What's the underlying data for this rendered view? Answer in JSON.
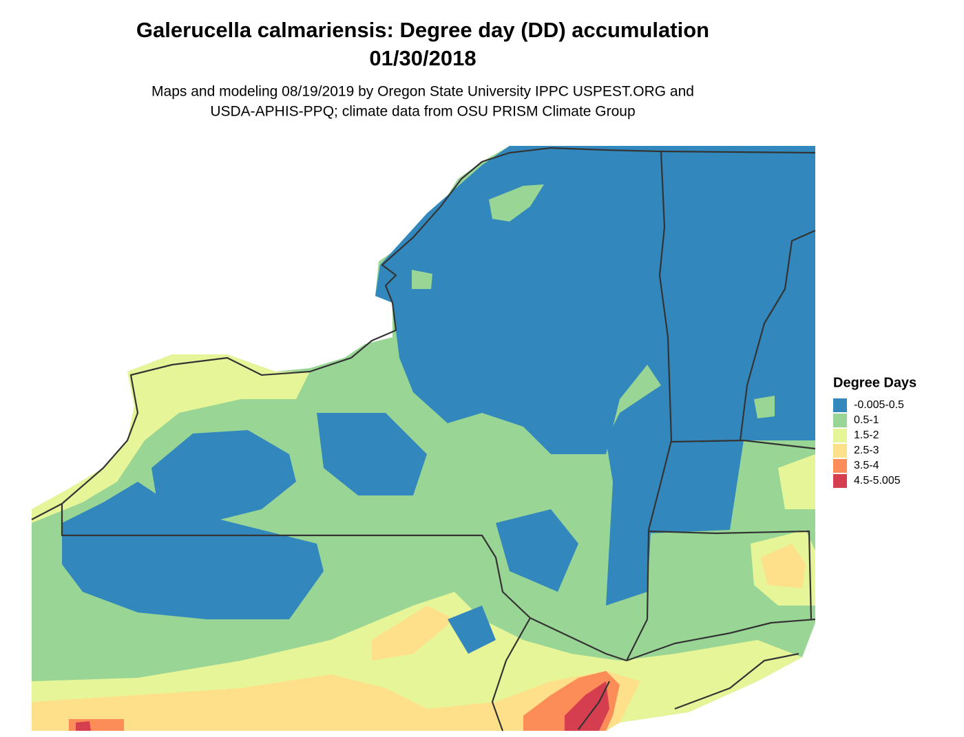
{
  "title": "Galerucella calmariensis: Degree day (DD) accumulation",
  "date": "01/30/2018",
  "subtitle_lines": [
    "Maps and modeling 08/19/2019 by Oregon State University IPPC USPEST.ORG and",
    "USDA-APHIS-PPQ; climate data from OSU PRISM Climate Group"
  ],
  "legend": {
    "title": "Degree Days",
    "items": [
      {
        "label": "-0.005-0.5",
        "color": "#3288bd"
      },
      {
        "label": "0.5-1",
        "color": "#99d594"
      },
      {
        "label": "1.5-2",
        "color": "#e6f598"
      },
      {
        "label": "2.5-3",
        "color": "#fee08b"
      },
      {
        "label": "3.5-4",
        "color": "#fc8d59"
      },
      {
        "label": "4.5-5.005",
        "color": "#d53e4f"
      }
    ]
  }
}
